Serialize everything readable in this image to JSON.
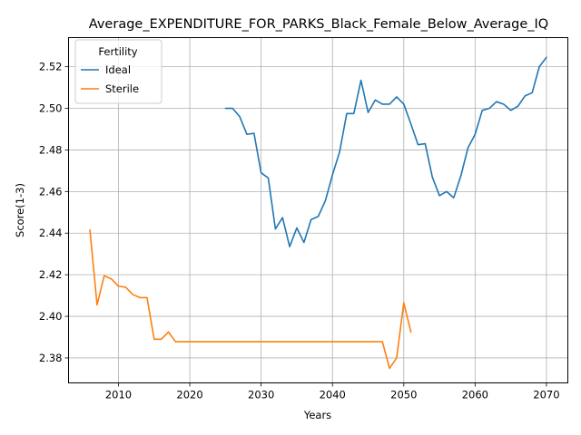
{
  "chart_data": {
    "type": "line",
    "title": "Average_EXPENDITURE_FOR_PARKS_Black_Female_Below_Average_IQ",
    "xlabel": "Years",
    "ylabel": "Score(1-3)",
    "xlim": [
      2003,
      2073
    ],
    "ylim": [
      2.368,
      2.534
    ],
    "xticks": [
      2010,
      2020,
      2030,
      2040,
      2050,
      2060,
      2070
    ],
    "yticks": [
      2.38,
      2.4,
      2.42,
      2.44,
      2.46,
      2.48,
      2.5,
      2.52
    ],
    "ytick_labels": [
      "2.38",
      "2.40",
      "2.42",
      "2.44",
      "2.46",
      "2.48",
      "2.50",
      "2.52"
    ],
    "grid": true,
    "legend": {
      "title": "Fertility",
      "position": "top-left"
    },
    "series": [
      {
        "name": "Ideal",
        "color": "#1f77b4",
        "x": [
          2025,
          2026,
          2027,
          2028,
          2029,
          2030,
          2031,
          2032,
          2033,
          2034,
          2035,
          2036,
          2037,
          2038,
          2039,
          2040,
          2041,
          2042,
          2043,
          2044,
          2045,
          2046,
          2047,
          2048,
          2049,
          2050,
          2051,
          2052,
          2053,
          2054,
          2055,
          2056,
          2057,
          2058,
          2059,
          2060,
          2061,
          2062,
          2063,
          2064,
          2065,
          2066,
          2067,
          2068,
          2069,
          2070
        ],
        "y": [
          2.5,
          2.5,
          2.496,
          2.4875,
          2.488,
          2.469,
          2.4665,
          2.442,
          2.4475,
          2.4335,
          2.4425,
          2.4355,
          2.4465,
          2.448,
          2.4555,
          2.468,
          2.479,
          2.4975,
          2.4975,
          2.5135,
          2.498,
          2.504,
          2.502,
          2.502,
          2.5055,
          2.502,
          2.4925,
          2.4825,
          2.483,
          2.467,
          2.458,
          2.46,
          2.457,
          2.4675,
          2.481,
          2.4875,
          2.499,
          2.5,
          2.5032,
          2.502,
          2.499,
          2.501,
          2.506,
          2.5075,
          2.52,
          2.5245
        ]
      },
      {
        "name": "Sterile",
        "color": "#ff7f0e",
        "x": [
          2006,
          2007,
          2008,
          2009,
          2010,
          2011,
          2012,
          2013,
          2014,
          2015,
          2016,
          2017,
          2018,
          2019,
          2020,
          2021,
          2022,
          2023,
          2024,
          2025,
          2026,
          2027,
          2028,
          2029,
          2030,
          2031,
          2032,
          2033,
          2034,
          2035,
          2036,
          2037,
          2038,
          2039,
          2040,
          2041,
          2042,
          2043,
          2044,
          2045,
          2046,
          2047,
          2048,
          2049,
          2050,
          2051
        ],
        "y": [
          2.4415,
          2.4055,
          2.4195,
          2.418,
          2.4145,
          2.414,
          2.4105,
          2.409,
          2.409,
          2.389,
          2.389,
          2.3925,
          2.3878,
          2.3878,
          2.3878,
          2.3878,
          2.3878,
          2.3878,
          2.3878,
          2.3878,
          2.3878,
          2.3878,
          2.3878,
          2.3878,
          2.3878,
          2.3878,
          2.3878,
          2.3878,
          2.3878,
          2.3878,
          2.3878,
          2.3878,
          2.3878,
          2.3878,
          2.3878,
          2.3878,
          2.3878,
          2.3878,
          2.3878,
          2.3878,
          2.3878,
          2.3878,
          2.375,
          2.38,
          2.4065,
          2.3925
        ]
      }
    ]
  }
}
